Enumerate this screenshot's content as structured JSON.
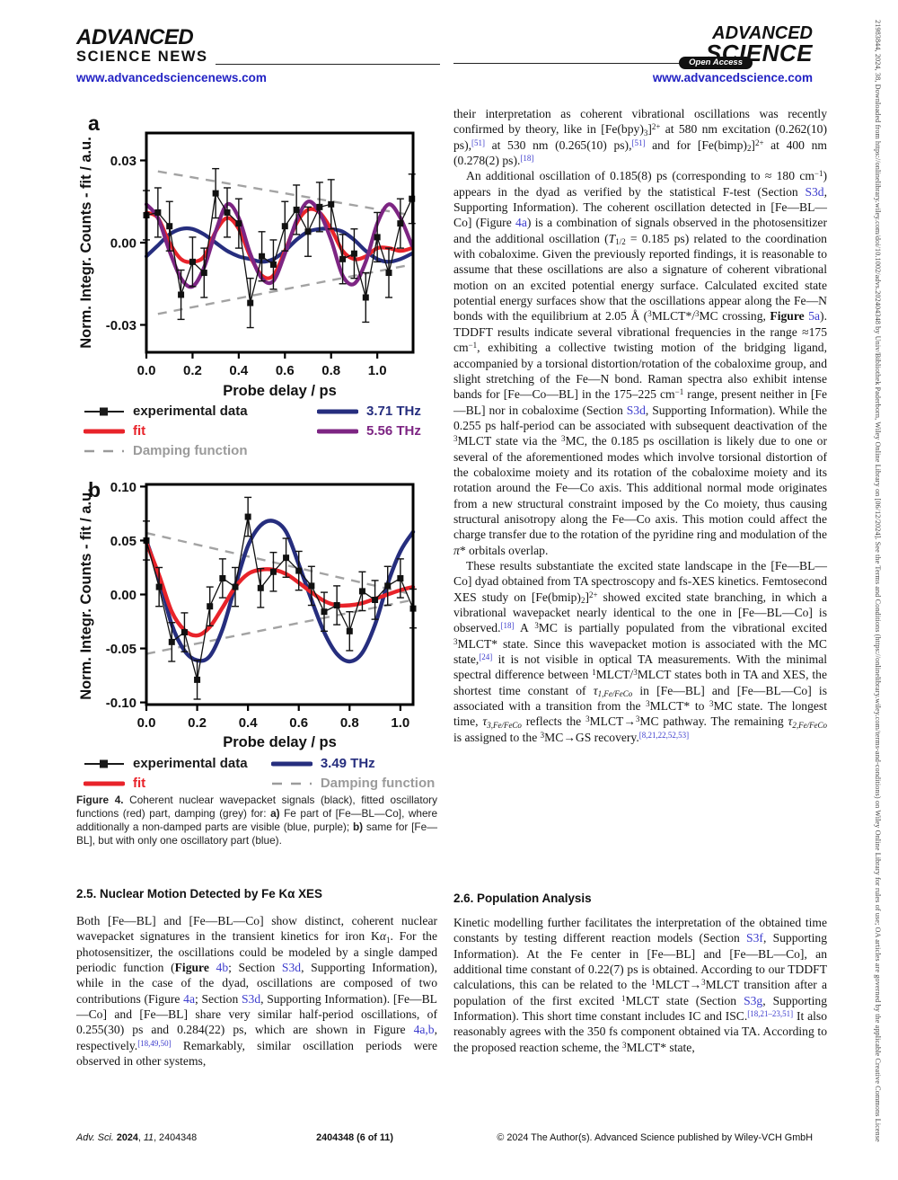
{
  "header": {
    "left_logo_line1": "ADVANCED",
    "left_logo_line2": "SCIENCE NEWS",
    "left_url": "www.advancedsciencenews.com",
    "right_logo_line1": "ADVANCED",
    "right_logo_line2": "SCIENCE",
    "open_access_label": "Open Access",
    "right_url": "www.advancedscience.com"
  },
  "colors": {
    "navy": "#262e7e",
    "purple": "#7d2583",
    "red": "#e8232a",
    "grey_dash": "#a3a3a3",
    "link_blue": "#3c3ccd",
    "url_blue": "#2222c4"
  },
  "figure": {
    "chart_data": [
      {
        "type": "line",
        "label": "a",
        "xlabel": "Probe delay / ps",
        "ylabel": "Norm. Integr. Counts - fit / a.u.",
        "xlim": [
          0,
          1.155
        ],
        "ylim": [
          -0.04,
          0.04
        ],
        "xticks": [
          0.0,
          0.2,
          0.4,
          0.6,
          0.8,
          1.0
        ],
        "xtick_labels": [
          "0.0",
          "0.2",
          "0.4",
          "0.6",
          "0.8",
          "1.0"
        ],
        "yticks": [
          0.03,
          0.0,
          -0.03
        ],
        "ytick_labels": [
          "0.03",
          "0.00",
          "-0.03"
        ],
        "x": [
          0,
          0.05,
          0.1,
          0.15,
          0.2,
          0.25,
          0.3,
          0.35,
          0.4,
          0.45,
          0.5,
          0.55,
          0.6,
          0.65,
          0.7,
          0.75,
          0.8,
          0.85,
          0.9,
          0.95,
          1.0,
          1.05,
          1.1,
          1.15
        ],
        "experimental": {
          "name": "experimental data",
          "err": 0.009,
          "y": [
            0.01,
            0.011,
            0.006,
            -0.019,
            -0.007,
            -0.011,
            0.018,
            0.011,
            0.007,
            -0.022,
            -0.005,
            -0.008,
            0.006,
            0.012,
            0.004,
            0.013,
            0.014,
            -0.006,
            -0.004,
            -0.02,
            0.002,
            -0.011,
            0.007,
            0.016
          ]
        },
        "series": [
          {
            "name": "3.71 THz",
            "color": "#262e7e",
            "width": 4.2,
            "y": [
              -0.005,
              -0.001,
              0.003,
              0.005,
              0.005,
              0.003,
              0.0,
              -0.003,
              -0.005,
              -0.006,
              -0.007,
              -0.006,
              -0.003,
              0.001,
              0.004,
              0.005,
              0.005,
              0.004,
              0.001,
              -0.003,
              -0.006,
              -0.007,
              -0.006,
              -0.004
            ]
          },
          {
            "name": "fit",
            "color": "#e8232a",
            "width": 4.2,
            "y": [
              0.011,
              0.009,
              0.0,
              -0.006,
              -0.007,
              -0.005,
              0.004,
              0.009,
              0.005,
              -0.005,
              -0.012,
              -0.012,
              -0.003,
              0.007,
              0.012,
              0.011,
              0.005,
              -0.003,
              -0.006,
              -0.005,
              -0.002,
              -0.002,
              -0.003,
              -0.002
            ]
          },
          {
            "name": "5.56 THz",
            "color": "#7d2583",
            "width": 4.2,
            "y": [
              0.014,
              0.009,
              -0.003,
              -0.013,
              -0.016,
              -0.009,
              0.004,
              0.014,
              0.009,
              -0.004,
              -0.013,
              -0.014,
              -0.004,
              0.008,
              0.015,
              0.011,
              0.001,
              -0.012,
              -0.015,
              -0.007,
              0.007,
              0.014,
              0.009,
              -0.001
            ]
          }
        ],
        "damping": {
          "name": "Damping function",
          "color": "#a3a3a3",
          "upper": [
            [
              0.05,
              0.026
            ],
            [
              1.15,
              0.01
            ]
          ],
          "lower": [
            [
              0.05,
              -0.026
            ],
            [
              1.15,
              -0.008
            ]
          ]
        }
      },
      {
        "type": "line",
        "label": "b",
        "xlabel": "Probe delay / ps",
        "ylabel": "Norm. Integr. Counts - fit / a.u.",
        "xlim": [
          0,
          1.05
        ],
        "ylim": [
          -0.102,
          0.102
        ],
        "xticks": [
          0.0,
          0.2,
          0.4,
          0.6,
          0.8,
          1.0
        ],
        "xtick_labels": [
          "0.0",
          "0.2",
          "0.4",
          "0.6",
          "0.8",
          "1.0"
        ],
        "yticks": [
          0.1,
          0.05,
          0.0,
          -0.05,
          -0.1
        ],
        "ytick_labels": [
          "0.10",
          "0.05",
          "0.00",
          "-0.05",
          "-0.10"
        ],
        "x": [
          0,
          0.05,
          0.1,
          0.15,
          0.2,
          0.25,
          0.3,
          0.35,
          0.4,
          0.45,
          0.5,
          0.55,
          0.6,
          0.65,
          0.7,
          0.75,
          0.8,
          0.85,
          0.9,
          0.95,
          1.0,
          1.05
        ],
        "experimental": {
          "name": "experimental data",
          "err": 0.018,
          "y": [
            0.05,
            0.007,
            -0.044,
            -0.035,
            -0.079,
            -0.011,
            0.015,
            0.007,
            0.072,
            0.006,
            0.021,
            0.034,
            0.022,
            0.008,
            -0.016,
            -0.01,
            -0.034,
            0.003,
            -0.005,
            0.008,
            0.015,
            -0.013
          ]
        },
        "series": [
          {
            "name": "3.49 THz",
            "color": "#262e7e",
            "width": 4.4,
            "y": [
              0.05,
              0.015,
              -0.028,
              -0.052,
              -0.061,
              -0.057,
              -0.032,
              0.008,
              0.045,
              0.064,
              0.068,
              0.058,
              0.028,
              -0.005,
              -0.035,
              -0.055,
              -0.062,
              -0.054,
              -0.028,
              0.01,
              0.04,
              0.058
            ]
          },
          {
            "name": "fit",
            "color": "#e8232a",
            "width": 4.4,
            "y": [
              0.048,
              0.018,
              -0.016,
              -0.033,
              -0.038,
              -0.03,
              -0.012,
              0.007,
              0.019,
              0.023,
              0.023,
              0.019,
              0.011,
              0.002,
              -0.006,
              -0.01,
              -0.01,
              -0.008,
              -0.004,
              0.0,
              0.004,
              0.007
            ]
          }
        ],
        "damping": {
          "name": "Damping function",
          "color": "#a3a3a3",
          "upper": [
            [
              0.0,
              0.057
            ],
            [
              1.05,
              0.0
            ]
          ],
          "lower": [
            [
              0.0,
              -0.055
            ],
            [
              1.05,
              -0.005
            ]
          ]
        }
      }
    ],
    "legend_a": {
      "items": [
        {
          "icon": "exp",
          "color": "#1a1a1a",
          "label": "experimental data"
        },
        {
          "icon": "line",
          "color": "#262e7e",
          "label": "3.71 THz"
        },
        {
          "icon": "line",
          "color": "#e8232a",
          "label": "fit"
        },
        {
          "icon": "line",
          "color": "#7d2583",
          "label": "5.56 THz"
        },
        {
          "icon": "dash",
          "color": "#9b9b9b",
          "label": "Damping function"
        }
      ]
    },
    "legend_b": {
      "items": [
        {
          "icon": "exp",
          "color": "#1a1a1a",
          "label": "experimental data"
        },
        {
          "icon": "line",
          "color": "#262e7e",
          "label": "3.49 THz"
        },
        {
          "icon": "line",
          "color": "#e8232a",
          "label": "fit"
        },
        {
          "icon": "dash",
          "color": "#9b9b9b",
          "label": "Damping function"
        }
      ]
    },
    "caption": [
      [
        "b",
        "Figure 4."
      ],
      [
        "",
        " Coherent nuclear wavepacket signals (black), fitted oscillatory functions (red) part, damping (grey) for: "
      ],
      [
        "b",
        "a)"
      ],
      [
        "",
        " Fe part of [Fe—BL—Co], where additionally a non-damped parts are visible (blue, purple); "
      ],
      [
        "b",
        "b)"
      ],
      [
        "",
        " same for [Fe—BL], but with only one oscillatory part (blue)."
      ]
    ]
  },
  "left_column": {
    "section_heading": "2.5. Nuclear Motion Detected by Fe Kα XES",
    "paragraph": [
      [
        "",
        "Both [Fe—BL] and [Fe—BL—Co] show distinct, coherent nuclear wavepacket signatures in the transient kinetics for iron K"
      ],
      [
        "i",
        "α"
      ],
      [
        "sub",
        "1"
      ],
      [
        "",
        ". For the photosensitizer, the oscillations could be modeled by a single damped periodic function ("
      ],
      [
        "b",
        "Figure"
      ],
      [
        "",
        " "
      ],
      [
        "link",
        "4b"
      ],
      [
        "",
        "; Section "
      ],
      [
        "link",
        "S3d"
      ],
      [
        "",
        ", Supporting Information), while in the case of the dyad, oscillations are composed of two contributions (Figure "
      ],
      [
        "link",
        "4a"
      ],
      [
        "",
        "; Section "
      ],
      [
        "link",
        "S3d"
      ],
      [
        "",
        ", Supporting Information). [Fe—BL—Co] and [Fe—BL] share very similar half-period oscillations, of 0.255(30) ps and 0.284(22) ps, which are shown in Figure "
      ],
      [
        "link",
        "4a,b"
      ],
      [
        "",
        ", respectively."
      ],
      [
        "suplink",
        "[18,49,50]"
      ],
      [
        "",
        " Remarkably, similar oscillation periods were observed in other systems,"
      ]
    ]
  },
  "right_column": {
    "paragraph1": [
      [
        "",
        "their interpretation as coherent vibrational oscillations was recently confirmed by theory, like in [Fe(bpy)"
      ],
      [
        "sub",
        "3"
      ],
      [
        "",
        "]"
      ],
      [
        "sup",
        "2+"
      ],
      [
        "",
        " at 580 nm excitation (0.262(10) ps),"
      ],
      [
        "suplink",
        "[51]"
      ],
      [
        "",
        " at 530 nm (0.265(10) ps),"
      ],
      [
        "suplink",
        "[51]"
      ],
      [
        "",
        " and for [Fe(bimp)"
      ],
      [
        "sub",
        "2"
      ],
      [
        "",
        "]"
      ],
      [
        "sup",
        "2+"
      ],
      [
        "",
        " at 400 nm (0.278(2) ps)."
      ],
      [
        "suplink",
        "[18]"
      ]
    ],
    "paragraph2": [
      [
        "",
        "An additional oscillation of 0.185(8) ps (corresponding to ≈ 180 cm"
      ],
      [
        "sup",
        "−1"
      ],
      [
        "",
        ") appears in the dyad as verified by the statistical F-test (Section "
      ],
      [
        "link",
        "S3d"
      ],
      [
        "",
        ", Supporting Information). The coherent oscillation detected in [Fe—BL—Co] (Figure "
      ],
      [
        "link",
        "4a"
      ],
      [
        "",
        ") is a combination of signals observed in the photosensitizer and the additional oscillation ("
      ],
      [
        "i",
        "T"
      ],
      [
        "sub",
        "1/2"
      ],
      [
        "",
        " = 0.185 ps) related to the coordination with cobaloxime. Given the previously reported findings, it is reasonable to assume that these oscillations are also a signature of coherent vibrational motion on an excited potential energy surface. Calculated excited state potential energy surfaces show that the oscillations appear along the Fe—N bonds with the equilibrium at 2.05 Å ("
      ],
      [
        "sup",
        "3"
      ],
      [
        "",
        "MLCT*/"
      ],
      [
        "sup",
        "3"
      ],
      [
        "",
        "MC crossing, "
      ],
      [
        "b",
        "Figure "
      ],
      [
        "link",
        "5a"
      ],
      [
        "",
        "). TDDFT results indicate several vibrational frequencies in the range ≈175 cm"
      ],
      [
        "sup",
        "−1"
      ],
      [
        "",
        ", exhibiting a collective twisting motion of the bridging ligand, accompanied by a torsional distortion/rotation of the cobaloxime group, and slight stretching of the Fe—N bond. Raman spectra also exhibit intense bands for [Fe—Co—BL] in the 175–225 cm"
      ],
      [
        "sup",
        "−1"
      ],
      [
        "",
        " range, present neither in [Fe—BL] nor in cobaloxime (Section "
      ],
      [
        "link",
        "S3d"
      ],
      [
        "",
        ", Supporting Information). While the 0.255 ps half-period can be associated with subsequent deactivation of the "
      ],
      [
        "sup",
        "3"
      ],
      [
        "",
        "MLCT state via the "
      ],
      [
        "sup",
        "3"
      ],
      [
        "",
        "MC, the 0.185 ps oscillation is likely due to one or several of the aforementioned modes which involve torsional distortion of the cobaloxime moiety and its rotation of the cobaloxime moiety and its rotation around the Fe—Co axis. This additional normal mode originates from a new structural constraint imposed by the Co moiety, thus causing structural anisotropy along the Fe—Co axis. This motion could affect the charge transfer due to the rotation of the pyridine ring and modulation of the "
      ],
      [
        "i",
        "π"
      ],
      [
        "",
        "* orbitals overlap."
      ]
    ],
    "paragraph3": [
      [
        "",
        "These results substantiate the excited state landscape in the [Fe—BL—Co] dyad obtained from TA spectroscopy and fs-XES kinetics. Femtosecond XES study on [Fe(bmip)"
      ],
      [
        "sub",
        "2"
      ],
      [
        "",
        "]"
      ],
      [
        "sup",
        "2+"
      ],
      [
        "",
        " showed excited state branching, in which a vibrational wavepacket nearly identical to the one in [Fe—BL—Co] is observed."
      ],
      [
        "suplink",
        "[18]"
      ],
      [
        "",
        " A "
      ],
      [
        "sup",
        "3"
      ],
      [
        "",
        "MC is partially populated from the vibrational excited "
      ],
      [
        "sup",
        "3"
      ],
      [
        "",
        "MLCT* state. Since this wavepacket motion is associated with the MC state,"
      ],
      [
        "suplink",
        "[24]"
      ],
      [
        "",
        " it is not visible in optical TA measurements. With the minimal spectral difference between "
      ],
      [
        "sup",
        "1"
      ],
      [
        "",
        "MLCT/"
      ],
      [
        "sup",
        "3"
      ],
      [
        "",
        "MLCT states both in TA and XES, the shortest time constant of "
      ],
      [
        "i",
        "τ"
      ],
      [
        "isub",
        "1,Fe/FeCo"
      ],
      [
        "",
        " in [Fe—BL] and [Fe—BL—Co] is associated with a transition from the "
      ],
      [
        "sup",
        "3"
      ],
      [
        "",
        "MLCT* to "
      ],
      [
        "sup",
        "3"
      ],
      [
        "",
        "MC state. The longest time, "
      ],
      [
        "i",
        "τ"
      ],
      [
        "isub",
        "3,Fe/FeCo"
      ],
      [
        "",
        " reflects the "
      ],
      [
        "sup",
        "3"
      ],
      [
        "",
        "MLCT→"
      ],
      [
        "sup",
        "3"
      ],
      [
        "",
        "MC pathway. The remaining "
      ],
      [
        "i",
        "τ"
      ],
      [
        "isub",
        "2,Fe/FeCo"
      ],
      [
        "",
        " is assigned to the "
      ],
      [
        "sup",
        "3"
      ],
      [
        "",
        "MC→GS recovery."
      ],
      [
        "suplink",
        "[8,21,22,52,53]"
      ]
    ],
    "section_heading": "2.6. Population Analysis",
    "paragraph4": [
      [
        "",
        "Kinetic modelling further facilitates the interpretation of the obtained time constants by testing different reaction models (Section "
      ],
      [
        "link",
        "S3f"
      ],
      [
        "",
        ", Supporting Information). At the Fe center in [Fe—BL] and [Fe—BL—Co], an additional time constant of 0.22(7) ps is obtained. According to our TDDFT calculations, this can be related to the "
      ],
      [
        "sup",
        "1"
      ],
      [
        "",
        "MLCT→"
      ],
      [
        "sup",
        "3"
      ],
      [
        "",
        "MLCT transition after a population of the first excited "
      ],
      [
        "sup",
        "1"
      ],
      [
        "",
        "MLCT state (Section "
      ],
      [
        "link",
        "S3g"
      ],
      [
        "",
        ", Supporting Information). This short time constant includes IC and ISC."
      ],
      [
        "suplink",
        "[18,21–23,51]"
      ],
      [
        "",
        " It also reasonably agrees with the 350 fs component obtained via TA. According to the proposed reaction scheme, the "
      ],
      [
        "sup",
        "3"
      ],
      [
        "",
        "MLCT* state,"
      ]
    ]
  },
  "sidebar_text": "21983844, 2024, 38, Downloaded from https://onlinelibrary.wiley.com/doi/10.1002/advs.202404348 by Univ/Bibliothek Paderborn, Wiley Online Library on [06/12/2024]. See the Terms and Conditions (https://onlinelibrary.wiley.com/terms-and-conditions) on Wiley Online Library for rules of use; OA articles are governed by the applicable Creative Commons License",
  "footer": {
    "left": [
      [
        "i",
        "Adv. Sci. "
      ],
      [
        "b",
        "2024"
      ],
      [
        "",
        ", "
      ],
      [
        "i",
        "11"
      ],
      [
        "",
        ", 2404348"
      ]
    ],
    "center": [
      [
        "b",
        "2404348 (6 of 11)"
      ]
    ],
    "right": [
      [
        "",
        "© 2024 The Author(s). Advanced Science published by Wiley-VCH GmbH"
      ]
    ]
  }
}
